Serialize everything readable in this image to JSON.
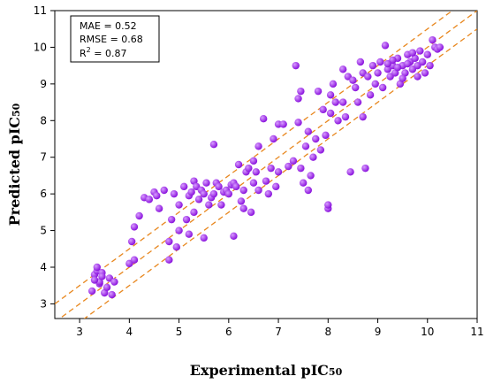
{
  "chart_data": {
    "type": "scatter",
    "xlabel": "Experimental pIC",
    "xlabel_sub": "50",
    "ylabel": "Predicted pIC",
    "ylabel_sub": "50",
    "xlim": [
      2.5,
      11
    ],
    "ylim": [
      2.6,
      11
    ],
    "xticks": [
      3,
      4,
      5,
      6,
      7,
      8,
      9,
      10,
      11
    ],
    "yticks": [
      3,
      4,
      5,
      6,
      7,
      8,
      9,
      10,
      11
    ],
    "grid": false,
    "colors": {
      "point": "#9b1de8",
      "point_highlight": "#d89cff",
      "line": "#e8871e"
    },
    "stats": [
      {
        "label": "MAE = 0.52"
      },
      {
        "label": "RMSE = 0.68"
      },
      {
        "label": "R",
        "sup": "2",
        "rest": " = 0.87"
      }
    ],
    "reference_lines": [
      {
        "intercept": 0,
        "style": "dashed"
      },
      {
        "intercept": 0.5,
        "style": "dashed"
      },
      {
        "intercept": -0.5,
        "style": "dashed"
      }
    ],
    "points": [
      [
        3.25,
        3.35
      ],
      [
        3.3,
        3.8
      ],
      [
        3.35,
        3.9
      ],
      [
        3.35,
        4.0
      ],
      [
        3.4,
        3.55
      ],
      [
        3.4,
        3.6
      ],
      [
        3.45,
        3.85
      ],
      [
        3.5,
        3.3
      ],
      [
        3.55,
        3.45
      ],
      [
        3.6,
        3.7
      ],
      [
        3.65,
        3.25
      ],
      [
        3.7,
        3.6
      ],
      [
        3.3,
        3.65
      ],
      [
        3.45,
        3.75
      ],
      [
        4.0,
        4.1
      ],
      [
        4.05,
        4.7
      ],
      [
        4.1,
        5.1
      ],
      [
        4.1,
        4.2
      ],
      [
        4.2,
        5.4
      ],
      [
        4.3,
        5.9
      ],
      [
        4.4,
        5.85
      ],
      [
        4.5,
        6.05
      ],
      [
        4.55,
        5.95
      ],
      [
        4.6,
        5.6
      ],
      [
        4.7,
        6.1
      ],
      [
        4.8,
        4.7
      ],
      [
        4.8,
        4.2
      ],
      [
        4.85,
        5.3
      ],
      [
        4.9,
        6.0
      ],
      [
        4.95,
        4.55
      ],
      [
        5.0,
        5.0
      ],
      [
        5.0,
        5.7
      ],
      [
        5.1,
        6.2
      ],
      [
        5.15,
        5.3
      ],
      [
        5.2,
        5.95
      ],
      [
        5.2,
        4.9
      ],
      [
        5.25,
        6.05
      ],
      [
        5.3,
        5.5
      ],
      [
        5.3,
        6.35
      ],
      [
        5.35,
        6.2
      ],
      [
        5.4,
        5.85
      ],
      [
        5.45,
        6.1
      ],
      [
        5.5,
        6.0
      ],
      [
        5.5,
        4.8
      ],
      [
        5.55,
        6.3
      ],
      [
        5.6,
        5.7
      ],
      [
        5.65,
        5.9
      ],
      [
        5.7,
        6.0
      ],
      [
        5.7,
        7.35
      ],
      [
        5.75,
        6.3
      ],
      [
        5.8,
        6.2
      ],
      [
        5.85,
        5.7
      ],
      [
        5.9,
        6.05
      ],
      [
        5.95,
        6.1
      ],
      [
        6.0,
        6.0
      ],
      [
        6.05,
        6.25
      ],
      [
        6.1,
        4.85
      ],
      [
        6.1,
        6.3
      ],
      [
        6.15,
        6.2
      ],
      [
        6.2,
        6.8
      ],
      [
        6.25,
        5.8
      ],
      [
        6.3,
        5.6
      ],
      [
        6.3,
        6.1
      ],
      [
        6.35,
        6.6
      ],
      [
        6.4,
        6.7
      ],
      [
        6.45,
        5.5
      ],
      [
        6.5,
        6.3
      ],
      [
        6.5,
        6.9
      ],
      [
        6.55,
        6.6
      ],
      [
        6.6,
        7.3
      ],
      [
        6.6,
        6.1
      ],
      [
        6.7,
        8.05
      ],
      [
        6.75,
        6.35
      ],
      [
        6.8,
        6.0
      ],
      [
        6.85,
        6.7
      ],
      [
        6.9,
        7.5
      ],
      [
        6.95,
        6.2
      ],
      [
        7.0,
        6.6
      ],
      [
        7.0,
        7.9
      ],
      [
        7.1,
        7.9
      ],
      [
        7.2,
        6.75
      ],
      [
        7.3,
        6.9
      ],
      [
        7.35,
        9.5
      ],
      [
        7.4,
        8.6
      ],
      [
        7.4,
        7.95
      ],
      [
        7.45,
        8.8
      ],
      [
        7.45,
        6.7
      ],
      [
        7.5,
        6.3
      ],
      [
        7.55,
        7.3
      ],
      [
        7.6,
        6.1
      ],
      [
        7.6,
        7.7
      ],
      [
        7.65,
        6.5
      ],
      [
        7.7,
        7.0
      ],
      [
        7.75,
        7.5
      ],
      [
        7.8,
        8.8
      ],
      [
        7.85,
        7.2
      ],
      [
        7.9,
        8.3
      ],
      [
        7.95,
        7.6
      ],
      [
        8.0,
        5.6
      ],
      [
        8.0,
        5.7
      ],
      [
        8.05,
        8.2
      ],
      [
        8.05,
        8.7
      ],
      [
        8.1,
        9.0
      ],
      [
        8.15,
        8.5
      ],
      [
        8.2,
        8.0
      ],
      [
        8.3,
        8.5
      ],
      [
        8.3,
        9.4
      ],
      [
        8.35,
        8.1
      ],
      [
        8.4,
        9.2
      ],
      [
        8.45,
        6.6
      ],
      [
        8.5,
        9.1
      ],
      [
        8.55,
        8.9
      ],
      [
        8.6,
        8.5
      ],
      [
        8.65,
        9.6
      ],
      [
        8.7,
        8.1
      ],
      [
        8.7,
        9.3
      ],
      [
        8.75,
        6.7
      ],
      [
        8.8,
        9.2
      ],
      [
        8.85,
        8.7
      ],
      [
        8.9,
        9.5
      ],
      [
        8.95,
        9.0
      ],
      [
        9.0,
        9.3
      ],
      [
        9.05,
        9.6
      ],
      [
        9.1,
        8.9
      ],
      [
        9.15,
        10.05
      ],
      [
        9.2,
        9.4
      ],
      [
        9.25,
        9.2
      ],
      [
        9.3,
        9.5
      ],
      [
        9.35,
        9.3
      ],
      [
        9.4,
        9.7
      ],
      [
        9.45,
        9.0
      ],
      [
        9.5,
        9.5
      ],
      [
        9.55,
        9.3
      ],
      [
        9.6,
        9.8
      ],
      [
        9.65,
        9.6
      ],
      [
        9.7,
        9.4
      ],
      [
        9.75,
        9.7
      ],
      [
        9.8,
        9.5
      ],
      [
        9.85,
        9.9
      ],
      [
        9.9,
        9.6
      ],
      [
        9.95,
        9.3
      ],
      [
        10.0,
        9.8
      ],
      [
        10.05,
        9.5
      ],
      [
        10.1,
        10.2
      ],
      [
        10.15,
        10.0
      ],
      [
        10.2,
        9.95
      ],
      [
        10.25,
        10.0
      ],
      [
        9.7,
        9.85
      ],
      [
        9.6,
        9.55
      ],
      [
        9.4,
        9.45
      ],
      [
        9.3,
        9.65
      ],
      [
        9.2,
        9.55
      ],
      [
        9.5,
        9.15
      ],
      [
        9.8,
        9.2
      ]
    ]
  }
}
